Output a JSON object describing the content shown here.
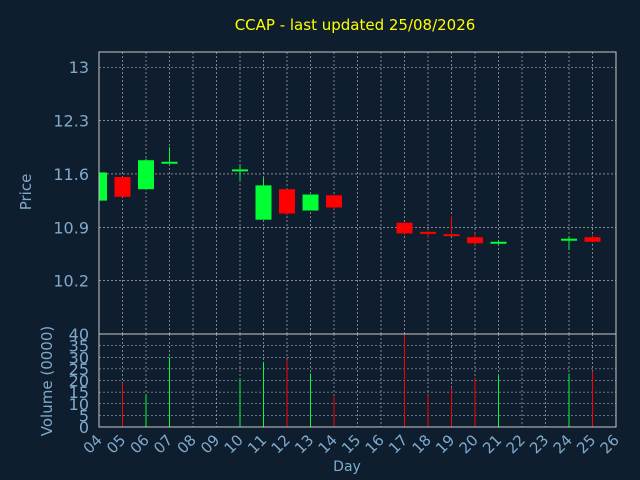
{
  "chart_data": {
    "type": "candlestick",
    "title": "CCAP - last updated 25/08/2026",
    "price_panel": {
      "ylabel": "Price",
      "yticks": [
        "13",
        "12.3",
        "11.6",
        "10.9",
        "10.2"
      ],
      "ylim": [
        9.5,
        13.2
      ]
    },
    "volume_panel": {
      "ylabel": "Volume (0000)",
      "yticks": [
        "0",
        "5",
        "10",
        "15",
        "20",
        "25",
        "30",
        "35",
        "40"
      ],
      "ylim": [
        0,
        40
      ]
    },
    "xlabel": "Day",
    "xticks": [
      "04",
      "05",
      "06",
      "07",
      "08",
      "09",
      "10",
      "11",
      "12",
      "13",
      "14",
      "15",
      "16",
      "17",
      "18",
      "19",
      "20",
      "21",
      "22",
      "23",
      "24",
      "25",
      "26"
    ],
    "candles": [
      {
        "day": "04",
        "open": 11.25,
        "high": 11.62,
        "low": 11.25,
        "close": 11.62
      },
      {
        "day": "05",
        "open": 11.56,
        "high": 11.56,
        "low": 11.3,
        "close": 11.3,
        "volume": 19
      },
      {
        "day": "06",
        "open": 11.4,
        "high": 11.8,
        "low": 11.4,
        "close": 11.78,
        "volume": 14
      },
      {
        "day": "07",
        "open": 11.74,
        "high": 11.95,
        "low": 11.74,
        "close": 11.76,
        "volume": 30
      },
      {
        "day": "10",
        "open": 11.65,
        "high": 11.72,
        "low": 11.52,
        "close": 11.66,
        "volume": 20
      },
      {
        "day": "11",
        "open": 11.0,
        "high": 11.55,
        "low": 11.0,
        "close": 11.45,
        "volume": 28
      },
      {
        "day": "12",
        "open": 11.4,
        "high": 11.4,
        "low": 11.06,
        "close": 11.08,
        "volume": 29
      },
      {
        "day": "13",
        "open": 11.12,
        "high": 11.33,
        "low": 11.12,
        "close": 11.33,
        "volume": 23
      },
      {
        "day": "14",
        "open": 11.32,
        "high": 11.32,
        "low": 11.14,
        "close": 11.16,
        "volume": 13
      },
      {
        "day": "17",
        "open": 10.96,
        "high": 10.96,
        "low": 10.8,
        "close": 10.82,
        "volume": 40
      },
      {
        "day": "18",
        "open": 10.84,
        "high": 10.85,
        "low": 10.76,
        "close": 10.82,
        "volume": 14
      },
      {
        "day": "19",
        "open": 10.81,
        "high": 11.05,
        "low": 10.79,
        "close": 10.79,
        "volume": 17
      },
      {
        "day": "20",
        "open": 10.77,
        "high": 10.82,
        "low": 10.67,
        "close": 10.69,
        "volume": 21
      },
      {
        "day": "21",
        "open": 10.7,
        "high": 10.72,
        "low": 10.68,
        "close": 10.71,
        "volume": 22
      },
      {
        "day": "24",
        "open": 10.74,
        "high": 10.78,
        "low": 10.6,
        "close": 10.75,
        "volume": 23
      },
      {
        "day": "25",
        "open": 10.77,
        "high": 10.8,
        "low": 10.7,
        "close": 10.71,
        "volume": 24
      }
    ],
    "colors": {
      "background": "#0f1e2e",
      "up": "#00ff33",
      "down": "#ff0000",
      "title": "#ffff00",
      "text": "#7faacc",
      "axis": "#c8c8c8",
      "grid": "#c8c8c8"
    },
    "grid": true
  }
}
